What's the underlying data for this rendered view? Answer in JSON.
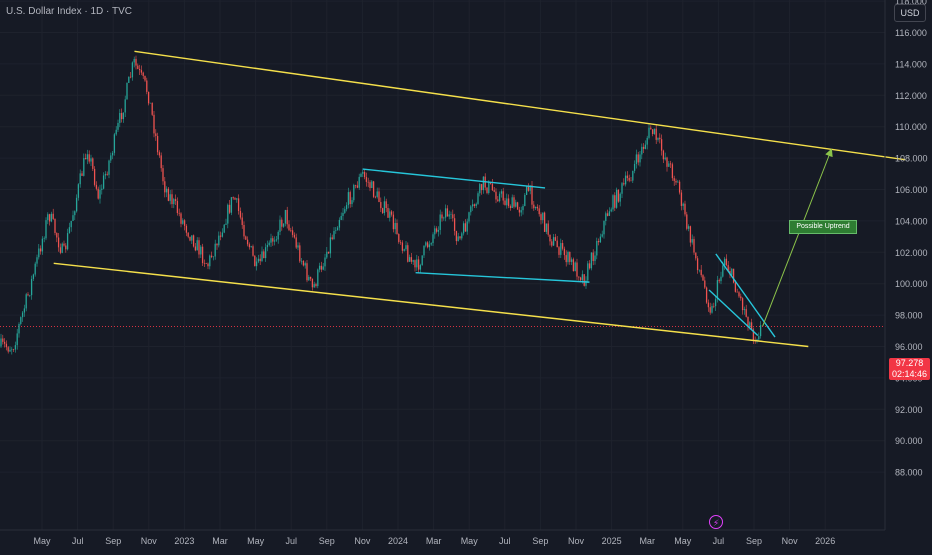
{
  "title": "U.S. Dollar Index · 1D · TVC",
  "currency": "USD",
  "last_price": "97.278",
  "countdown": "02:14:46",
  "colors": {
    "background": "#161a25",
    "channel": "#f5e04b",
    "pattern": "#26c6da",
    "projection": "#8bc34a",
    "up_candle": "#26a69a",
    "down_candle": "#ef5350",
    "last_price": "#f23645"
  },
  "chart_data": {
    "type": "candlestick",
    "x_tick_labels": [
      "May",
      "Jul",
      "Sep",
      "Nov",
      "2023",
      "Mar",
      "May",
      "Jul",
      "Sep",
      "Nov",
      "2024",
      "Mar",
      "May",
      "Jul",
      "Sep",
      "Nov",
      "2025",
      "Mar",
      "May",
      "Jul",
      "Sep",
      "Nov",
      "2026"
    ],
    "y_tick_labels": [
      "118.000",
      "116.000",
      "114.000",
      "112.000",
      "110.000",
      "108.000",
      "106.000",
      "104.000",
      "102.000",
      "100.000",
      "98.000",
      "96.000",
      "94.000",
      "92.000",
      "90.000",
      "88.000"
    ],
    "ylim": [
      87,
      121
    ],
    "last_price": 97.278,
    "close_path": [
      {
        "t": "2022-03-15",
        "v": 96.0
      },
      {
        "t": "2022-04-10",
        "v": 99.5
      },
      {
        "t": "2022-05-12",
        "v": 104.5
      },
      {
        "t": "2022-06-05",
        "v": 101.8
      },
      {
        "t": "2022-07-14",
        "v": 108.7
      },
      {
        "t": "2022-08-01",
        "v": 105.5
      },
      {
        "t": "2022-08-25",
        "v": 108.8
      },
      {
        "t": "2022-09-27",
        "v": 114.1
      },
      {
        "t": "2022-10-20",
        "v": 112.2
      },
      {
        "t": "2022-11-15",
        "v": 106.3
      },
      {
        "t": "2022-12-15",
        "v": 104.0
      },
      {
        "t": "2023-01-25",
        "v": 101.2
      },
      {
        "t": "2023-03-08",
        "v": 105.6
      },
      {
        "t": "2023-04-14",
        "v": 100.9
      },
      {
        "t": "2023-05-31",
        "v": 104.4
      },
      {
        "t": "2023-07-14",
        "v": 99.6
      },
      {
        "t": "2023-08-25",
        "v": 104.2
      },
      {
        "t": "2023-10-03",
        "v": 107.0
      },
      {
        "t": "2023-11-15",
        "v": 104.3
      },
      {
        "t": "2023-12-28",
        "v": 100.9
      },
      {
        "t": "2024-02-14",
        "v": 104.8
      },
      {
        "t": "2024-03-08",
        "v": 102.7
      },
      {
        "t": "2024-04-16",
        "v": 106.4
      },
      {
        "t": "2024-06-12",
        "v": 104.7
      },
      {
        "t": "2024-06-28",
        "v": 106.0
      },
      {
        "t": "2024-08-05",
        "v": 102.8
      },
      {
        "t": "2024-09-27",
        "v": 100.3
      },
      {
        "t": "2024-11-05",
        "v": 104.7
      },
      {
        "t": "2024-12-12",
        "v": 107.0
      },
      {
        "t": "2025-01-13",
        "v": 109.9
      },
      {
        "t": "2025-02-03",
        "v": 108.2
      },
      {
        "t": "2025-02-25",
        "v": 106.4
      },
      {
        "t": "2025-03-11",
        "v": 103.8
      },
      {
        "t": "2025-04-21",
        "v": 98.2
      },
      {
        "t": "2025-05-12",
        "v": 101.7
      },
      {
        "t": "2025-06-30",
        "v": 96.6
      },
      {
        "t": "2025-07-11",
        "v": 97.3
      }
    ],
    "drawings": [
      {
        "name": "upper-channel-line",
        "kind": "trend",
        "color": "channel",
        "points": [
          {
            "t": "2022-09-28",
            "v": 114.8
          },
          {
            "t": "2026-03-01",
            "v": 107.9
          }
        ]
      },
      {
        "name": "lower-channel-line",
        "kind": "trend",
        "color": "channel",
        "points": [
          {
            "t": "2022-05-20",
            "v": 101.3
          },
          {
            "t": "2025-09-25",
            "v": 96.0
          }
        ]
      },
      {
        "name": "range-upper-line",
        "kind": "trend",
        "color": "pattern",
        "points": [
          {
            "t": "2023-10-03",
            "v": 107.3
          },
          {
            "t": "2024-07-25",
            "v": 106.1
          }
        ]
      },
      {
        "name": "range-lower-line",
        "kind": "trend",
        "color": "pattern",
        "points": [
          {
            "t": "2023-12-28",
            "v": 100.7
          },
          {
            "t": "2024-10-05",
            "v": 100.1
          }
        ]
      },
      {
        "name": "wedge-upper-line",
        "kind": "trend",
        "color": "pattern",
        "points": [
          {
            "t": "2025-04-28",
            "v": 101.9
          },
          {
            "t": "2025-08-02",
            "v": 96.6
          }
        ]
      },
      {
        "name": "wedge-lower-line",
        "kind": "trend",
        "color": "pattern",
        "points": [
          {
            "t": "2025-04-17",
            "v": 99.6
          },
          {
            "t": "2025-07-05",
            "v": 96.7
          }
        ]
      },
      {
        "name": "projection-arrow",
        "kind": "arrow",
        "color": "projection",
        "points": [
          {
            "t": "2025-07-13",
            "v": 97.3
          },
          {
            "t": "2025-11-01",
            "v": 108.5
          }
        ]
      }
    ],
    "annotations": [
      {
        "text": "Possible Uptrend",
        "t": "2025-11-08",
        "v": 106.7
      }
    ]
  }
}
